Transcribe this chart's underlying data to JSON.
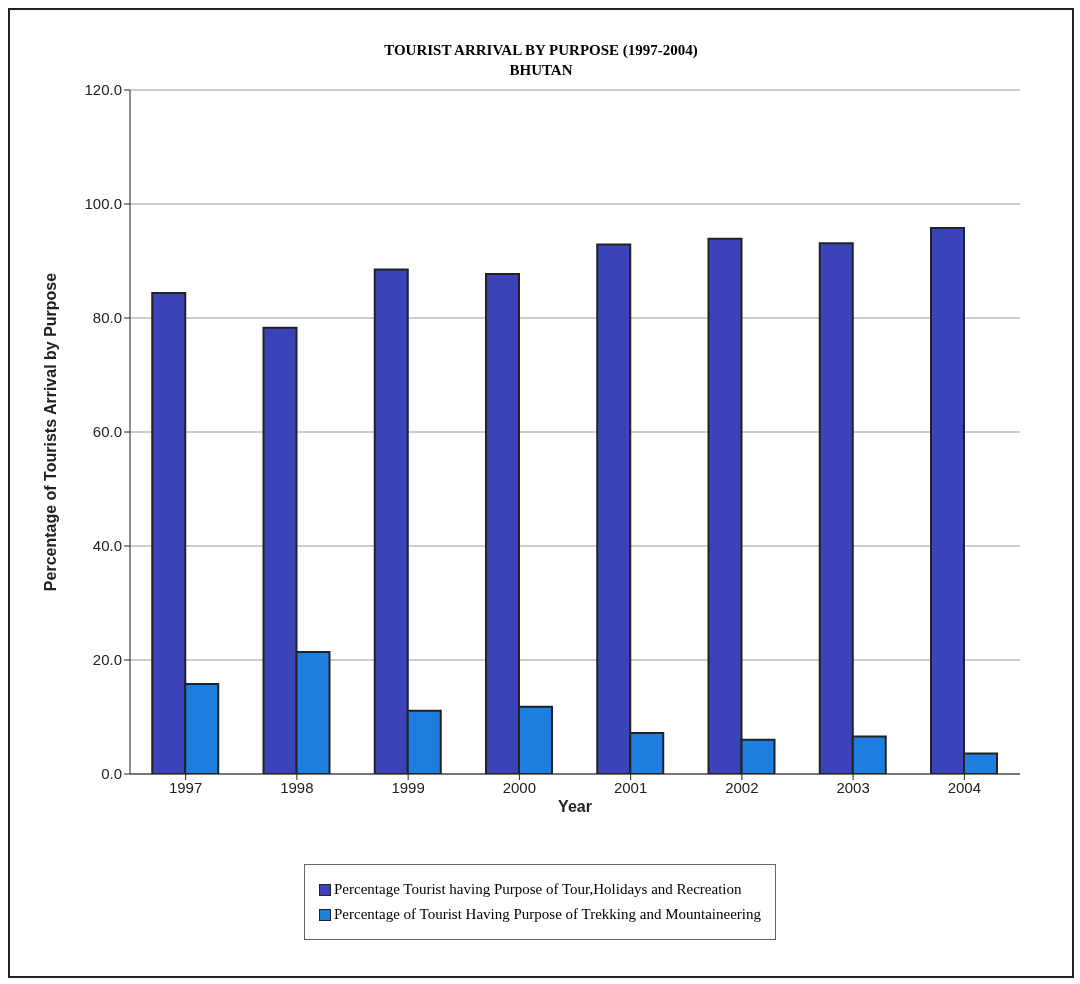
{
  "chart_data": {
    "type": "bar",
    "title": "TOURIST ARRIVAL BY PURPOSE (1997-2004)",
    "subtitle": "BHUTAN",
    "xlabel": "Year",
    "ylabel": "Percentage of Tourists Arrival by Purpose",
    "categories": [
      "1997",
      "1998",
      "1999",
      "2000",
      "2001",
      "2002",
      "2003",
      "2004"
    ],
    "series": [
      {
        "name": "Percentage Tourist having Purpose of Tour,Holidays and Recreation",
        "color": "#3a44b8",
        "values": [
          84.4,
          78.3,
          88.5,
          87.7,
          92.9,
          93.9,
          93.1,
          95.8
        ]
      },
      {
        "name": "Percentage of Tourist Having Purpose of Trekking and Mountaineering",
        "color": "#1e7ee0",
        "values": [
          15.8,
          21.4,
          11.1,
          11.8,
          7.2,
          6.0,
          6.6,
          3.6
        ]
      }
    ],
    "ylim": [
      0,
      120
    ],
    "yticks": [
      {
        "value": 0,
        "label": "0.0"
      },
      {
        "value": 20,
        "label": "20.0"
      },
      {
        "value": 40,
        "label": "40.0"
      },
      {
        "value": 60,
        "label": "60.0"
      },
      {
        "value": 80,
        "label": "80.0"
      },
      {
        "value": 100,
        "label": "100.0"
      },
      {
        "value": 120,
        "label": "120.0"
      }
    ],
    "grid": "y",
    "legend": "bottom"
  }
}
